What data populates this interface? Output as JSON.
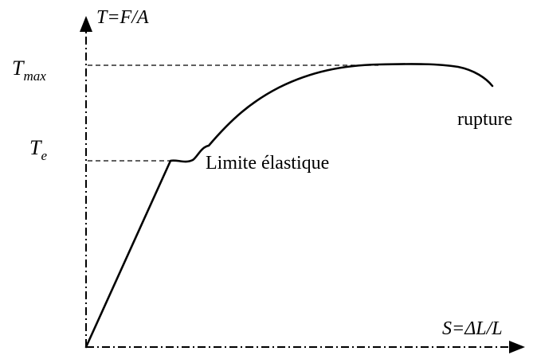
{
  "y_axis": {
    "label_symbol": "T",
    "label_rest": "=F/A"
  },
  "x_axis": {
    "label_symbol": "S",
    "label_rest": "=ΔL/L"
  },
  "levels": {
    "tmax": {
      "main": "T",
      "sub": "max"
    },
    "te": {
      "main": "T",
      "sub": "e"
    }
  },
  "annotations": {
    "elastic_limit": "Limite élastique",
    "rupture": "rupture"
  }
}
